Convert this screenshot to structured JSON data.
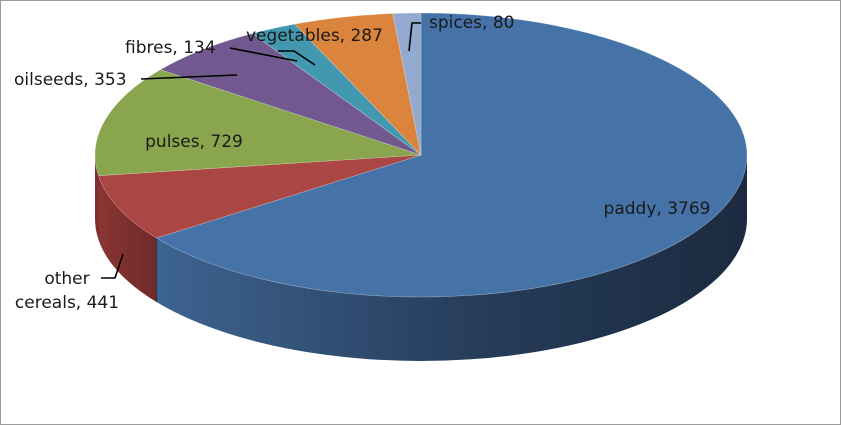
{
  "chart_data": {
    "type": "pie",
    "title": "",
    "three_d": true,
    "legend": "none",
    "slices": [
      {
        "label": "paddy",
        "value": 3769,
        "text": "paddy, 3769",
        "color": "#4572a7"
      },
      {
        "label": "other cereals",
        "value": 441,
        "text_lines": [
          "other",
          "cereals, 441"
        ],
        "color": "#aa4643"
      },
      {
        "label": "pulses",
        "value": 729,
        "text": "pulses, 729",
        "color": "#89a54e"
      },
      {
        "label": "oilseeds",
        "value": 353,
        "text": "oilseeds, 353",
        "color": "#71588f"
      },
      {
        "label": "fibres",
        "value": 134,
        "text": "fibres, 134",
        "color": "#4198af"
      },
      {
        "label": "vegetables",
        "value": 287,
        "text": "vegetables, 287",
        "color": "#db843d"
      },
      {
        "label": "spices",
        "value": 80,
        "text": "spices, 80",
        "color": "#93a9cf"
      }
    ]
  }
}
